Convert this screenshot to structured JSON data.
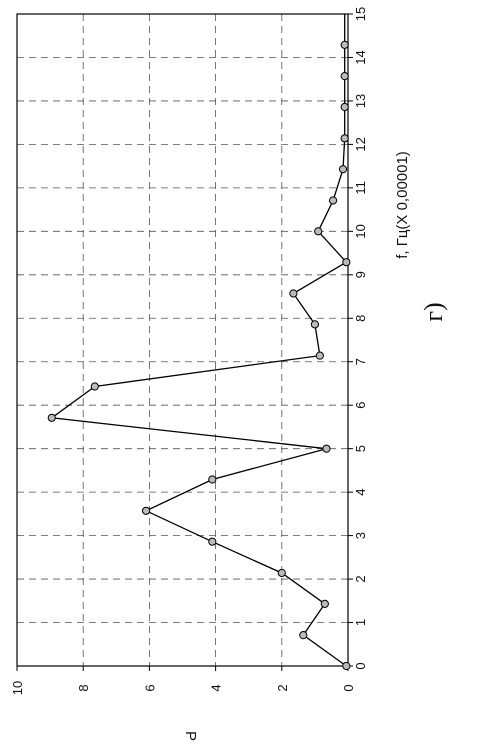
{
  "chart_data": {
    "type": "line",
    "x": [
      0,
      0.71,
      1.43,
      2.14,
      2.86,
      3.57,
      4.29,
      5.0,
      5.71,
      6.43,
      7.14,
      7.86,
      8.57,
      9.29,
      10.0,
      10.71,
      11.43,
      12.14,
      12.86,
      13.57,
      14.29
    ],
    "y": [
      0.05,
      1.35,
      0.7,
      2.0,
      4.1,
      6.1,
      4.1,
      0.65,
      8.95,
      7.65,
      0.85,
      1.0,
      1.65,
      0.05,
      0.9,
      0.45,
      0.15,
      0.1,
      0.1,
      0.1,
      0.1
    ],
    "xlabel": "f, Гц(X 0,00001)",
    "ylabel": "P",
    "xlim": [
      0,
      15
    ],
    "ylim": [
      0,
      10
    ],
    "x_ticks": [
      "0",
      "1",
      "2",
      "3",
      "4",
      "5",
      "6",
      "7",
      "8",
      "9",
      "10",
      "11",
      "12",
      "13",
      "14",
      "15"
    ],
    "y_ticks": [
      "0",
      "2",
      "4",
      "6",
      "8",
      "10"
    ],
    "grid": true,
    "orientation": "rotated-90",
    "caption": "г)",
    "line_color": "#000000",
    "marker_fill": "#bbbbbb"
  }
}
